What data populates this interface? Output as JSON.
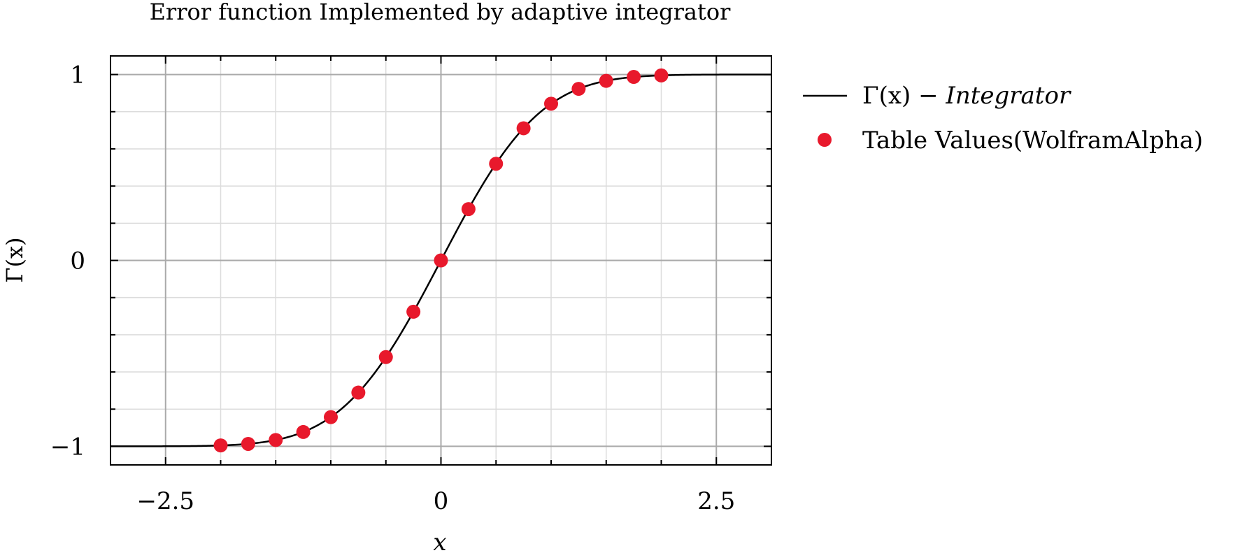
{
  "chart_data": {
    "type": "line",
    "title": "Error function Implemented by adaptive integrator",
    "xlabel": "x",
    "ylabel": "Γ(x)",
    "xlim": [
      -3,
      3
    ],
    "ylim": [
      -1.1,
      1.1
    ],
    "x_ticks": [
      -2.5,
      0,
      2.5
    ],
    "x_tick_labels": [
      "−2.5",
      "0",
      "2.5"
    ],
    "y_ticks": [
      -1,
      0,
      1
    ],
    "y_tick_labels": [
      "−1",
      "0",
      "1"
    ],
    "grid": true,
    "legend_position": "right",
    "series": [
      {
        "name": "Γ(x) − Integrator",
        "kind": "line",
        "color": "#000000",
        "function": "erf",
        "x_range": [
          -3,
          3
        ]
      },
      {
        "name": "Table Values(WolframAlpha)",
        "kind": "scatter",
        "color": "#e8192c",
        "x": [
          -2,
          -1.75,
          -1.5,
          -1.25,
          -1,
          -0.75,
          -0.5,
          -0.25,
          0,
          0.25,
          0.5,
          0.75,
          1,
          1.25,
          1.5,
          1.75,
          2
        ],
        "y": [
          -0.995,
          -0.987,
          -0.966,
          -0.923,
          -0.843,
          -0.711,
          -0.52,
          -0.276,
          0,
          0.276,
          0.52,
          0.711,
          0.843,
          0.923,
          0.966,
          0.987,
          0.995
        ]
      }
    ]
  }
}
